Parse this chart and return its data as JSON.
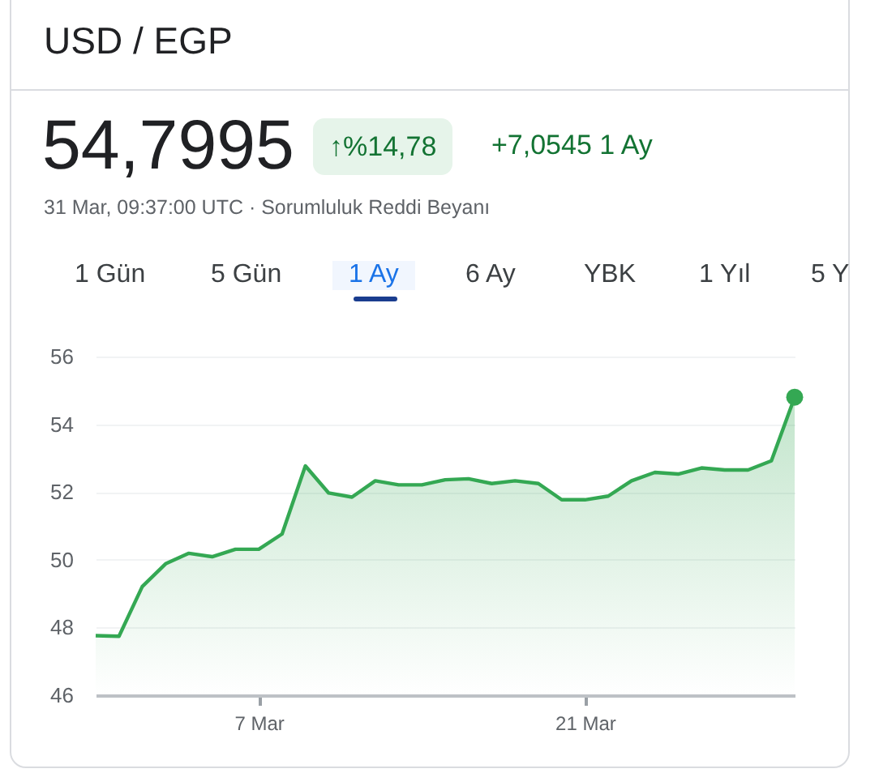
{
  "chart_data": {
    "type": "area",
    "title": "USD / EGP",
    "annotations": [
      "54,7995",
      "↑%14,78",
      "+7,0545 1 Ay",
      "31 Mar, 09:37:00 UTC · Sorumluluk Reddi Beyanı",
      "1 Gün",
      "5 Gün",
      "1 Ay",
      "6 Ay",
      "YBK",
      "1 Yıl",
      "5 Y"
    ],
    "x": [
      "--02-29",
      "--03-01",
      "--03-02",
      "--03-03",
      "--03-04",
      "--03-05",
      "--03-06",
      "--03-07",
      "--03-08",
      "--03-09",
      "--03-10",
      "--03-11",
      "--03-12",
      "--03-13",
      "--03-14",
      "--03-15",
      "--03-16",
      "--03-17",
      "--03-18",
      "--03-19",
      "--03-20",
      "--03-21",
      "--03-22",
      "--03-23",
      "--03-24",
      "--03-25",
      "--03-26",
      "--03-27",
      "--03-28",
      "--03-29",
      "--03-30"
    ],
    "series": [
      {
        "color": "#34a853",
        "values": [
          47.76,
          47.74,
          49.21,
          49.88,
          50.19,
          50.09,
          50.31,
          50.31,
          50.76,
          52.77,
          51.97,
          51.85,
          52.33,
          52.21,
          52.21,
          52.36,
          52.39,
          52.25,
          52.33,
          52.25,
          51.77,
          51.77,
          51.88,
          52.33,
          52.58,
          52.53,
          52.71,
          52.65,
          52.65,
          52.92,
          54.8
        ]
      }
    ],
    "xlim": [
      "--02-29",
      "--03-30"
    ],
    "xticks": [
      {
        "value": "--03-07",
        "label": "7 Mar"
      },
      {
        "value": "--03-21",
        "label": "21 Mar"
      }
    ],
    "ylim": [
      46,
      56
    ],
    "yticks": [
      46,
      48,
      50,
      52,
      54,
      56
    ],
    "grid": "y"
  }
}
